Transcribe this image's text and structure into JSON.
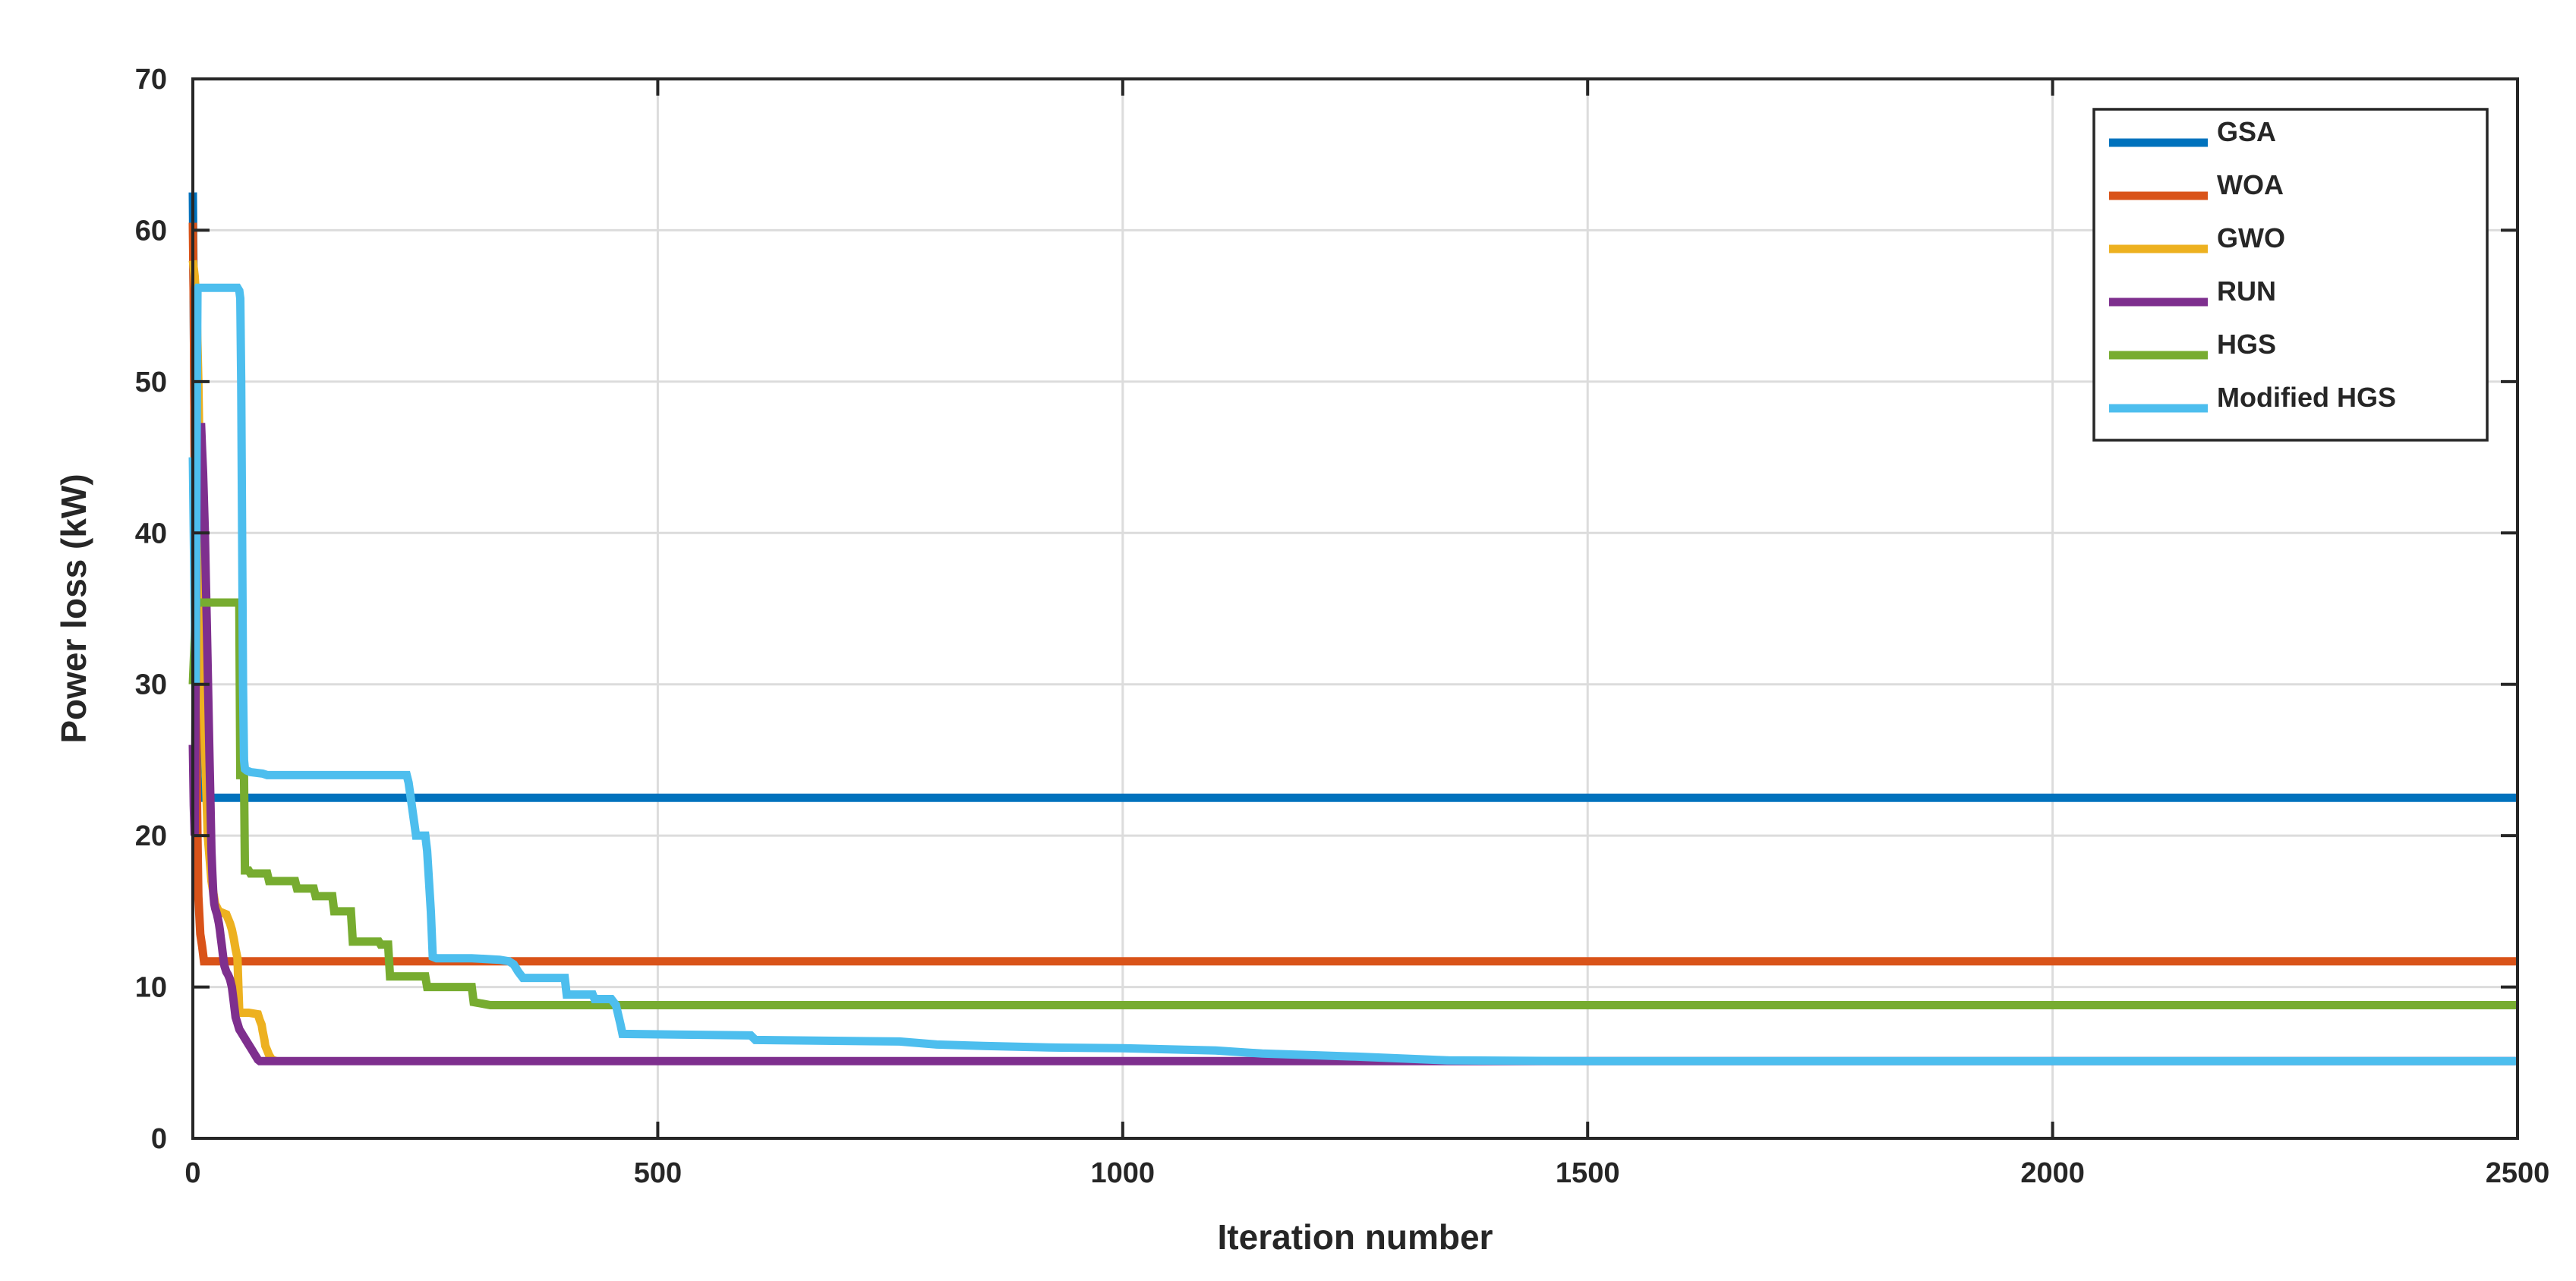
{
  "chart_data": {
    "type": "line",
    "title": "",
    "xlabel": "Iteration number",
    "ylabel": "Power loss (kW)",
    "xlim": [
      0,
      2500
    ],
    "ylim": [
      0,
      70
    ],
    "xticks": [
      0,
      500,
      1000,
      1500,
      2000,
      2500
    ],
    "yticks": [
      0,
      10,
      20,
      30,
      40,
      50,
      60,
      70
    ],
    "grid": true,
    "legend_position": "top-right",
    "series": [
      {
        "name": "GSA",
        "color": "#0072BD",
        "x": [
          0,
          1,
          2,
          3,
          4,
          5,
          7,
          2500
        ],
        "y": [
          62.5,
          55,
          45,
          35,
          28,
          24,
          22.5,
          22.5
        ]
      },
      {
        "name": "WOA",
        "color": "#D95319",
        "x": [
          0,
          1,
          2,
          3,
          4,
          5,
          6,
          8,
          10,
          12,
          2500
        ],
        "y": [
          60.5,
          55,
          45,
          35,
          25,
          20,
          16,
          13.5,
          12.7,
          11.7,
          11.7
        ]
      },
      {
        "name": "GWO",
        "color": "#EDB120",
        "x": [
          0,
          2,
          4,
          6,
          8,
          10,
          12,
          14,
          16,
          20,
          24,
          28,
          36,
          38,
          40,
          42,
          44,
          46,
          48,
          49,
          50,
          60,
          70,
          72,
          74,
          75,
          76,
          77,
          78,
          80,
          82,
          85,
          90
        ],
        "y": [
          58,
          57,
          55,
          50,
          42,
          35,
          28,
          24,
          20,
          17,
          15.5,
          15,
          14.8,
          14.5,
          14.2,
          13.8,
          13.2,
          12.5,
          11.9,
          10,
          8.3,
          8.3,
          8.2,
          7.8,
          7.5,
          7.1,
          6.8,
          6.5,
          6.1,
          5.8,
          5.5,
          5.2,
          5.1
        ]
      },
      {
        "name": "RUN",
        "color": "#7E2F8E",
        "x": [
          0,
          1,
          2,
          3,
          4,
          5,
          6,
          7,
          8,
          9,
          10,
          11,
          12,
          13,
          14,
          15,
          16,
          17,
          18,
          19,
          20,
          21,
          22,
          23,
          24,
          25,
          26,
          27,
          28,
          29,
          30,
          31,
          32,
          33,
          34,
          36,
          38,
          40,
          42,
          44,
          46,
          48,
          50,
          52,
          54,
          56,
          58,
          60,
          62,
          64,
          66,
          68,
          70,
          72,
          74,
          76,
          78,
          80,
          1300,
          2500
        ],
        "y": [
          26,
          22,
          20,
          30,
          40,
          47,
          47,
          47,
          47,
          47,
          45.5,
          44,
          42,
          40,
          37,
          34,
          31,
          28,
          25,
          22,
          19,
          17.5,
          16.2,
          15.5,
          15.2,
          15,
          14.8,
          14.5,
          14.2,
          13.8,
          13.3,
          12.8,
          12.3,
          11.8,
          11.4,
          11,
          10.8,
          10.5,
          10,
          9,
          8,
          7.6,
          7.2,
          7,
          6.8,
          6.6,
          6.4,
          6.2,
          6,
          5.8,
          5.6,
          5.4,
          5.2,
          5.1,
          5.1,
          5.1,
          5.1,
          5.1,
          5.1,
          5.1
        ]
      },
      {
        "name": "HGS",
        "color": "#77AC30",
        "x": [
          0,
          2,
          3,
          4,
          5,
          50,
          51,
          55,
          56,
          60,
          62,
          80,
          82,
          110,
          112,
          130,
          132,
          150,
          152,
          170,
          172,
          200,
          202,
          210,
          212,
          250,
          252,
          300,
          302,
          320,
          2500
        ],
        "y": [
          30,
          33,
          35.2,
          35.4,
          35.4,
          35.4,
          24,
          24,
          17.7,
          17.7,
          17.5,
          17.5,
          17,
          17,
          16.5,
          16.5,
          16,
          16,
          15,
          15,
          13,
          13,
          12.8,
          12.8,
          10.7,
          10.7,
          10,
          10,
          9,
          8.8,
          8.8
        ]
      },
      {
        "name": "Modified HGS",
        "color": "#4DBEEE",
        "x": [
          0,
          1,
          2,
          3,
          4,
          5,
          6,
          48,
          50,
          51,
          52,
          53,
          54,
          55,
          56,
          58,
          62,
          75,
          80,
          230,
          232,
          240,
          250,
          252,
          256,
          258,
          262,
          300,
          330,
          340,
          345,
          350,
          355,
          360,
          400,
          402,
          430,
          432,
          450,
          455,
          460,
          462,
          600,
          605,
          760,
          800,
          850,
          920,
          1000,
          1100,
          1150,
          1200,
          1250,
          1350,
          1500,
          2000,
          2500
        ],
        "y": [
          45,
          40,
          35,
          30,
          45,
          56,
          56.2,
          56.2,
          56,
          55.5,
          50,
          40,
          30,
          25,
          24.4,
          24.3,
          24.2,
          24.1,
          24,
          24,
          23.5,
          20,
          20,
          19,
          15,
          12,
          11.9,
          11.9,
          11.8,
          11.7,
          11.5,
          11,
          10.6,
          10.6,
          10.6,
          9.5,
          9.5,
          9.2,
          9.2,
          8.8,
          7.5,
          6.9,
          6.8,
          6.5,
          6.4,
          6.2,
          6.1,
          6.0,
          5.95,
          5.8,
          5.6,
          5.5,
          5.4,
          5.15,
          5.1,
          5.1,
          5.1
        ]
      }
    ]
  }
}
